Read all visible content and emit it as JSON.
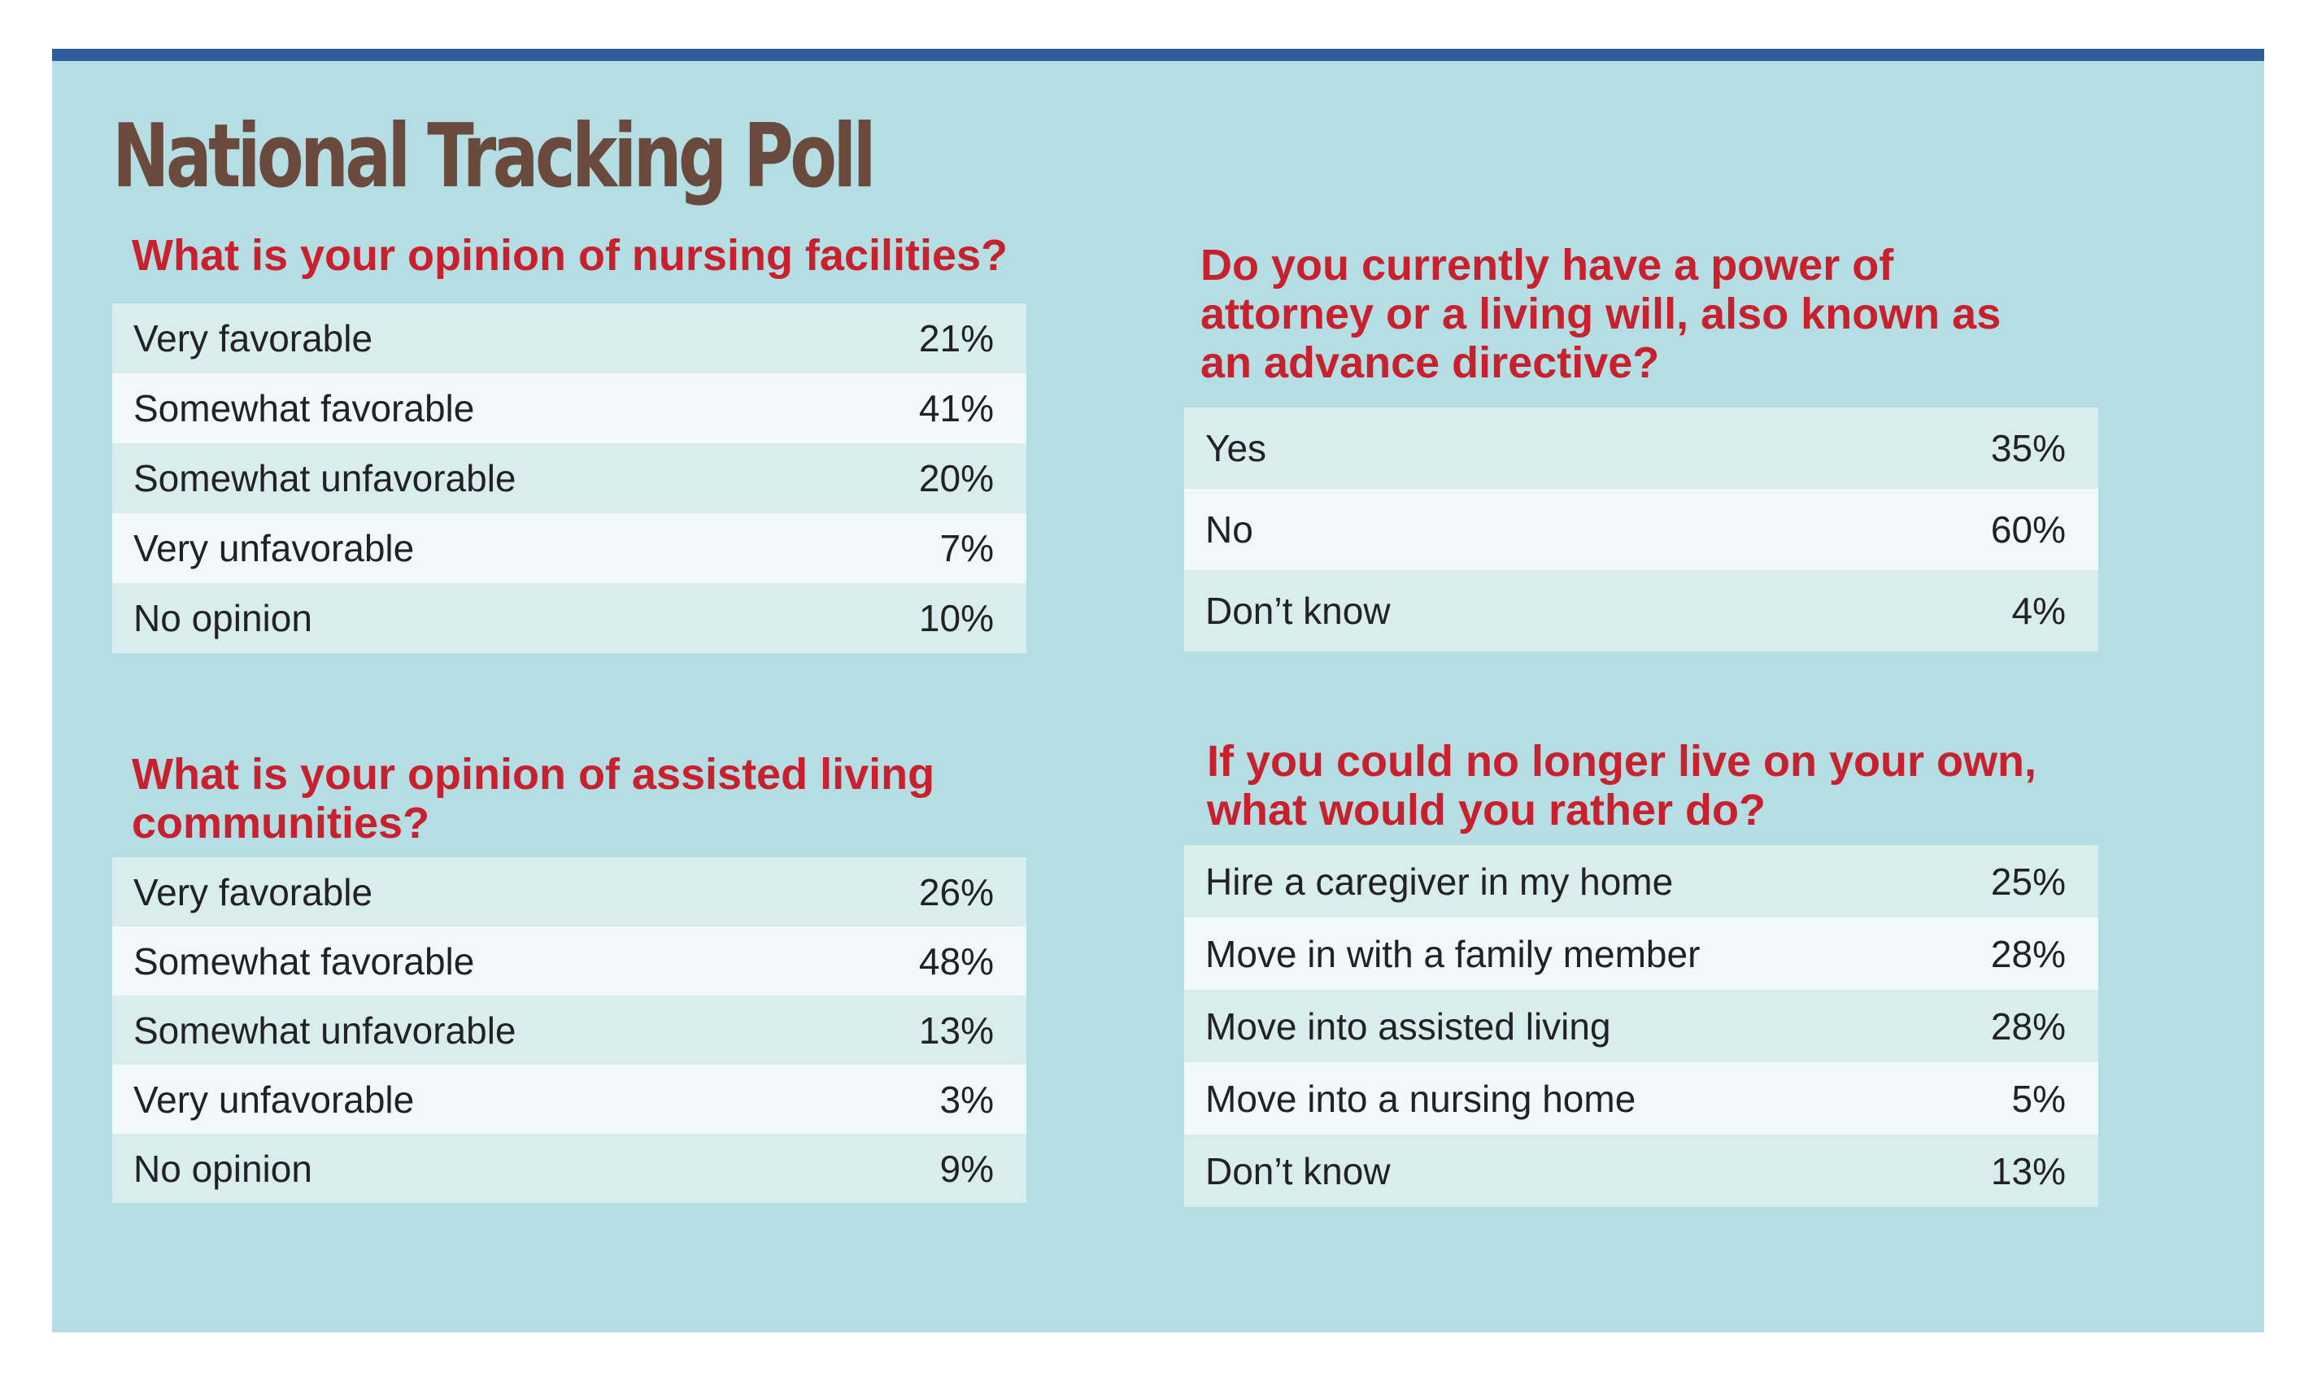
{
  "title": "National Tracking Poll",
  "colors": {
    "frame": "#b4dee3",
    "topbar": "#2f5c9a",
    "title": "#6b4a3e",
    "question": "#c8202c",
    "row_a": "#d9edef",
    "row_b": "#f2f7fa"
  },
  "chart_data": [
    {
      "type": "table",
      "title": "What is your opinion of nursing facilities?",
      "categories": [
        "Very favorable",
        "Somewhat favorable",
        "Somewhat unfavorable",
        "Very unfavorable",
        "No opinion"
      ],
      "values": [
        "21%",
        "41%",
        "20%",
        "7%",
        "10%"
      ]
    },
    {
      "type": "table",
      "title": "What is your opinion of assisted living communities?",
      "title_lines": [
        "What is your opinion of assisted living",
        "communities?"
      ],
      "categories": [
        "Very favorable",
        "Somewhat favorable",
        "Somewhat unfavorable",
        "Very unfavorable",
        "No opinion"
      ],
      "values": [
        "26%",
        "48%",
        "13%",
        "3%",
        "9%"
      ]
    },
    {
      "type": "table",
      "title": "Do you currently have a power of attorney or a living will, also known as an advance directive?",
      "title_lines": [
        "Do you currently have a power of",
        "attorney or a living will, also known as",
        "an advance directive?"
      ],
      "categories": [
        "Yes",
        "No",
        "Don’t know"
      ],
      "values": [
        "35%",
        "60%",
        "4%"
      ]
    },
    {
      "type": "table",
      "title": "If you could no longer live on your own, what would you rather do?",
      "title_lines": [
        "If you could no longer live on your own,",
        "what would you rather do?"
      ],
      "categories": [
        "Hire a caregiver in my home",
        "Move in with a family member",
        "Move into assisted living",
        "Move into a nursing home",
        "Don’t know"
      ],
      "values": [
        "25%",
        "28%",
        "28%",
        "5%",
        "13%"
      ]
    }
  ]
}
